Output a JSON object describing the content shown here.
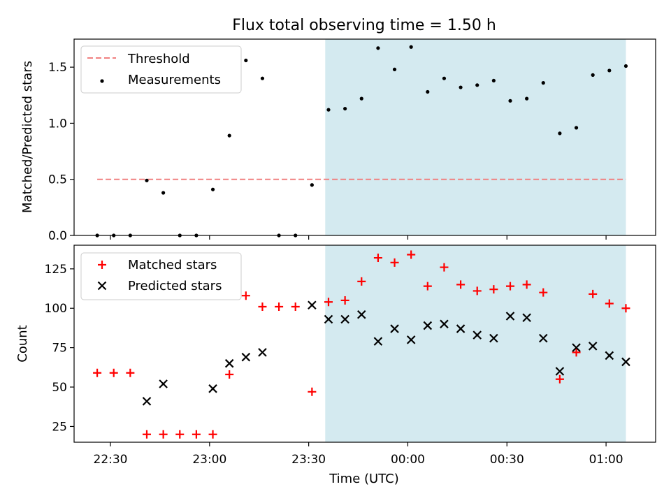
{
  "chart_data": [
    {
      "type": "scatter",
      "title": "Flux total observing time = 1.50 h",
      "ylabel": "Matched/Predicted stars",
      "xlabel": "",
      "ylim": [
        0,
        1.75
      ],
      "yticks": [
        0.0,
        0.5,
        1.0,
        1.5
      ],
      "ytick_labels": [
        "0.0",
        "0.5",
        "1.0",
        "1.5"
      ],
      "legend_position": "upper left",
      "highlight_span": {
        "start": "23:35",
        "end": "01:06",
        "color": "#d4eaf0"
      },
      "threshold": {
        "name": "Threshold",
        "value": 0.5,
        "x_start": "22:26",
        "x_end": "01:06",
        "color": "#f08080",
        "style": "dashed"
      },
      "series": [
        {
          "name": "Measurements",
          "color": "#000000",
          "marker": "dot",
          "x": [
            "22:26",
            "22:31",
            "22:36",
            "22:41",
            "22:46",
            "22:51",
            "22:56",
            "23:01",
            "23:06",
            "23:11",
            "23:16",
            "23:21",
            "23:26",
            "23:31",
            "23:36",
            "23:41",
            "23:46",
            "23:51",
            "23:56",
            "00:01",
            "00:06",
            "00:11",
            "00:16",
            "00:21",
            "00:26",
            "00:31",
            "00:36",
            "00:41",
            "00:46",
            "00:51",
            "00:56",
            "01:01",
            "01:06"
          ],
          "y": [
            0.0,
            0.0,
            0.0,
            0.49,
            0.38,
            0.0,
            0.0,
            0.41,
            0.89,
            1.56,
            1.4,
            0.0,
            0.0,
            0.45,
            1.12,
            1.13,
            1.22,
            1.67,
            1.48,
            1.68,
            1.28,
            1.4,
            1.32,
            1.34,
            1.38,
            1.2,
            1.22,
            1.36,
            0.91,
            0.96,
            1.43,
            1.47,
            1.51
          ]
        }
      ]
    },
    {
      "type": "scatter",
      "title": "",
      "ylabel": "Count",
      "xlabel": "Time (UTC)",
      "ylim": [
        15,
        140
      ],
      "yticks": [
        25,
        50,
        75,
        100,
        125
      ],
      "ytick_labels": [
        "25",
        "50",
        "75",
        "100",
        "125"
      ],
      "xlim": [
        "22:19",
        "01:15"
      ],
      "xticks": [
        "22:30",
        "23:00",
        "23:30",
        "00:00",
        "00:30",
        "01:00"
      ],
      "xtick_labels": [
        "22:30",
        "23:00",
        "23:30",
        "00:00",
        "00:30",
        "01:00"
      ],
      "legend_position": "upper left",
      "highlight_span": {
        "start": "23:35",
        "end": "01:06",
        "color": "#d4eaf0"
      },
      "series": [
        {
          "name": "Matched stars",
          "color": "#ff0000",
          "marker": "plus",
          "x": [
            "22:26",
            "22:31",
            "22:36",
            "22:41",
            "22:46",
            "22:51",
            "22:56",
            "23:01",
            "23:06",
            "23:11",
            "23:16",
            "23:21",
            "23:26",
            "23:31",
            "23:36",
            "23:41",
            "23:46",
            "23:51",
            "23:56",
            "00:01",
            "00:06",
            "00:11",
            "00:16",
            "00:21",
            "00:26",
            "00:31",
            "00:36",
            "00:41",
            "00:46",
            "00:51",
            "00:56",
            "01:01",
            "01:06"
          ],
          "y": [
            59,
            59,
            59,
            20,
            20,
            20,
            20,
            20,
            58,
            108,
            101,
            101,
            101,
            47,
            104,
            105,
            117,
            132,
            129,
            134,
            114,
            126,
            115,
            111,
            112,
            114,
            115,
            110,
            55,
            72,
            109,
            103,
            100
          ]
        },
        {
          "name": "Predicted stars",
          "color": "#000000",
          "marker": "x",
          "x": [
            "22:41",
            "22:46",
            "23:01",
            "23:06",
            "23:11",
            "23:16",
            "23:31",
            "23:36",
            "23:41",
            "23:46",
            "23:51",
            "23:56",
            "00:01",
            "00:06",
            "00:11",
            "00:16",
            "00:21",
            "00:26",
            "00:31",
            "00:36",
            "00:41",
            "00:46",
            "00:51",
            "00:56",
            "01:01",
            "01:06"
          ],
          "y": [
            41,
            52,
            49,
            65,
            69,
            72,
            102,
            93,
            93,
            96,
            79,
            87,
            80,
            89,
            90,
            87,
            83,
            81,
            95,
            94,
            81,
            60,
            75,
            76,
            70,
            66
          ]
        }
      ]
    }
  ]
}
